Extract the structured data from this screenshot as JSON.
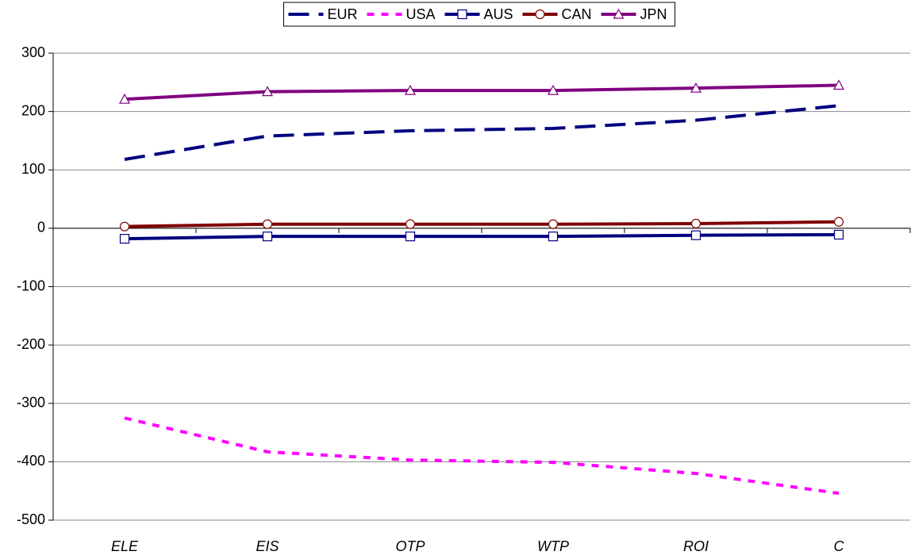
{
  "chart_data": {
    "type": "line",
    "categories": [
      "ELE",
      "EIS",
      "OTP",
      "WTP",
      "ROI",
      "C"
    ],
    "series": [
      {
        "name": "EUR",
        "color": "#000080",
        "line_style": "dashed",
        "values": [
          118,
          158,
          167,
          171,
          185,
          210
        ]
      },
      {
        "name": "USA",
        "color": "#ff00ff",
        "line_style": "dotted",
        "values": [
          -325,
          -383,
          -397,
          -401,
          -420,
          -454
        ]
      },
      {
        "name": "AUS",
        "color": "#000080",
        "line_style": "solid",
        "marker": "square",
        "values": [
          -18,
          -14,
          -14,
          -14,
          -12,
          -11
        ]
      },
      {
        "name": "CAN",
        "color": "#800000",
        "line_style": "solid",
        "marker": "circle",
        "values": [
          3,
          7,
          7,
          7,
          8,
          11
        ]
      },
      {
        "name": "JPN",
        "color": "#800080",
        "line_style": "solid",
        "marker": "triangle",
        "values": [
          221,
          234,
          236,
          236,
          240,
          245
        ]
      }
    ],
    "ylim": [
      -500,
      300
    ],
    "yticks": [
      -500,
      -400,
      -300,
      -200,
      -100,
      0,
      100,
      200,
      300
    ],
    "grid": true,
    "legend": "top"
  }
}
